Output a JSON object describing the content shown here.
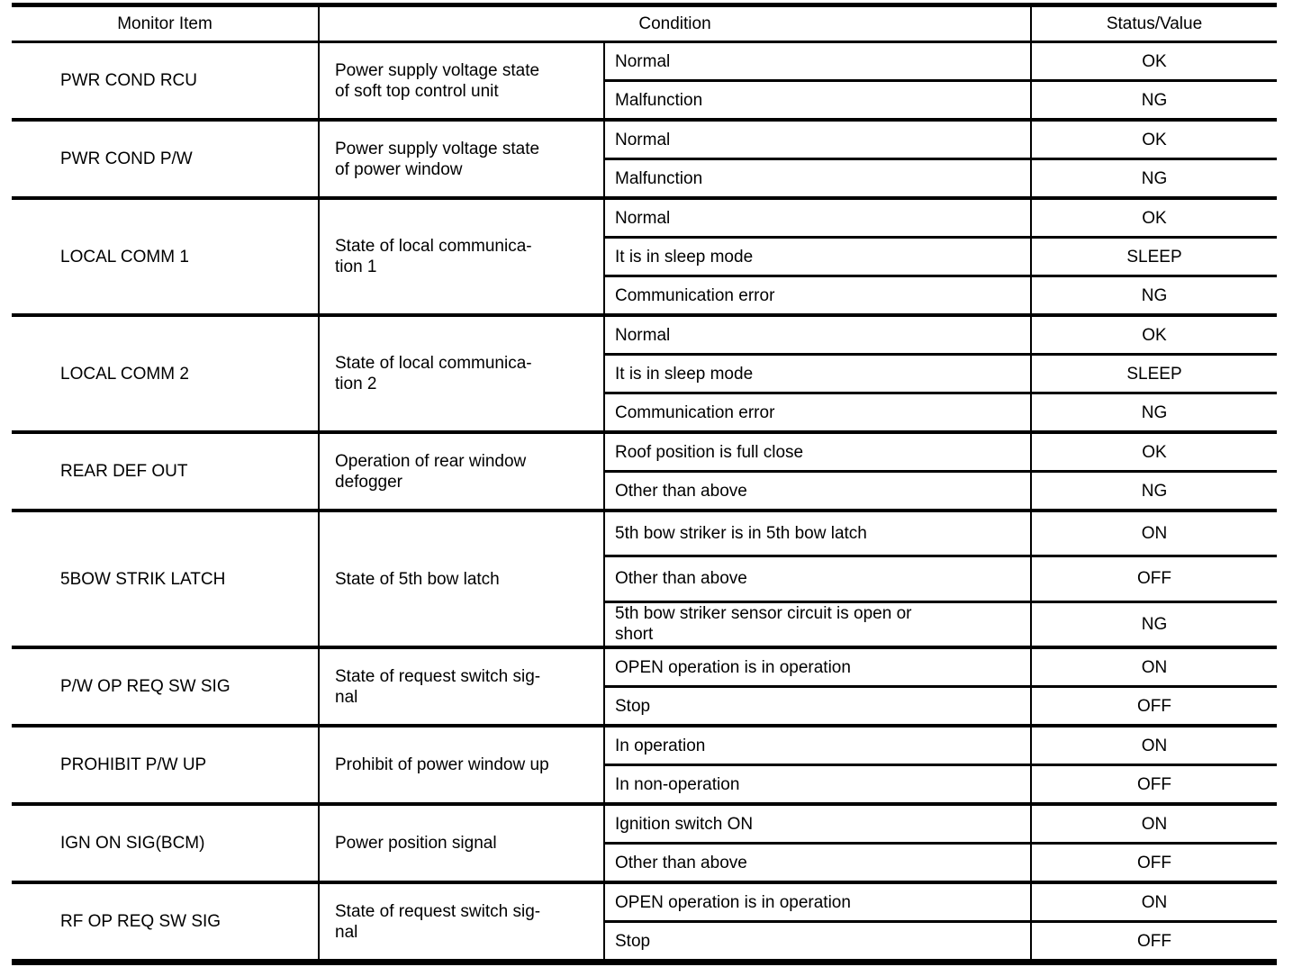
{
  "colors": {
    "border": "#000000",
    "text": "#000000",
    "background": "#ffffff"
  },
  "table": {
    "headers": {
      "monitor_item": "Monitor Item",
      "condition": "Condition",
      "status_value": "Status/Value"
    },
    "rows": [
      {
        "item": "PWR COND RCU",
        "description": "Power supply voltage state\nof soft top control unit",
        "conditions": [
          {
            "condition": "Normal",
            "status": "OK"
          },
          {
            "condition": "Malfunction",
            "status": "NG"
          }
        ]
      },
      {
        "item": "PWR COND P/W",
        "description": "Power supply voltage state\nof power window",
        "conditions": [
          {
            "condition": "Normal",
            "status": "OK"
          },
          {
            "condition": "Malfunction",
            "status": "NG"
          }
        ]
      },
      {
        "item": "LOCAL COMM 1",
        "description": "State of local communica-\ntion 1",
        "conditions": [
          {
            "condition": "Normal",
            "status": "OK"
          },
          {
            "condition": "It is in sleep mode",
            "status": "SLEEP"
          },
          {
            "condition": "Communication error",
            "status": "NG"
          }
        ]
      },
      {
        "item": "LOCAL COMM 2",
        "description": "State of local communica-\ntion 2",
        "conditions": [
          {
            "condition": "Normal",
            "status": "OK"
          },
          {
            "condition": "It is in sleep mode",
            "status": "SLEEP"
          },
          {
            "condition": "Communication error",
            "status": "NG"
          }
        ]
      },
      {
        "item": "REAR DEF OUT",
        "description": "Operation of rear window\ndefogger",
        "conditions": [
          {
            "condition": "Roof position is full close",
            "status": "OK"
          },
          {
            "condition": "Other than above",
            "status": "NG"
          }
        ]
      },
      {
        "item": "5BOW STRIK LATCH",
        "description": "State of 5th bow latch",
        "conditions": [
          {
            "condition": "5th bow striker is in 5th bow latch",
            "status": "ON"
          },
          {
            "condition": "Other than above",
            "status": "OFF"
          },
          {
            "condition": "5th bow striker sensor circuit is open or\nshort",
            "status": "NG"
          }
        ]
      },
      {
        "item": "P/W OP REQ SW SIG",
        "description": "State of request switch sig-\nnal",
        "conditions": [
          {
            "condition": "OPEN operation is in operation",
            "status": "ON"
          },
          {
            "condition": "Stop",
            "status": "OFF"
          }
        ]
      },
      {
        "item": "PROHIBIT P/W UP",
        "description": "Prohibit of power window up",
        "conditions": [
          {
            "condition": "In operation",
            "status": "ON"
          },
          {
            "condition": "In non-operation",
            "status": "OFF"
          }
        ]
      },
      {
        "item": "IGN ON SIG(BCM)",
        "description": "Power position signal",
        "conditions": [
          {
            "condition": "Ignition switch ON",
            "status": "ON"
          },
          {
            "condition": "Other than above",
            "status": "OFF"
          }
        ]
      },
      {
        "item": "RF OP REQ SW SIG",
        "description": "State of request switch sig-\nnal",
        "conditions": [
          {
            "condition": "OPEN operation is in operation",
            "status": "ON"
          },
          {
            "condition": "Stop",
            "status": "OFF"
          }
        ]
      }
    ]
  }
}
